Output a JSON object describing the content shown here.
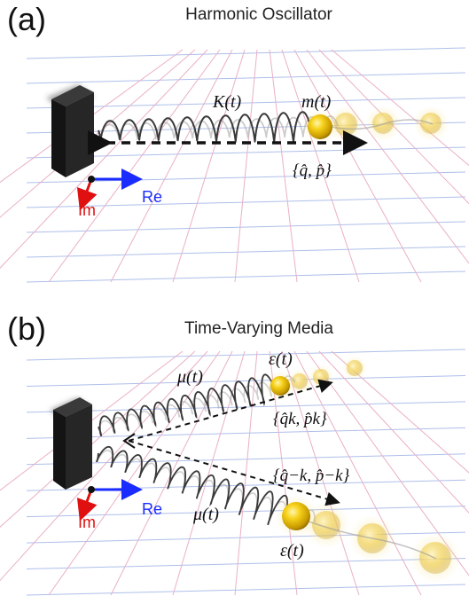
{
  "figure": {
    "panel_a": {
      "letter": "(a)",
      "title": "Harmonic Oscillator",
      "spring_label": "K(t)",
      "mass_label": "m(t)",
      "state_label": "{q̂, p̂}",
      "axis_re": "Re",
      "axis_im": "Im"
    },
    "panel_b": {
      "letter": "(b)",
      "title": "Time-Varying Media",
      "spring_label_upper": "μ(t)",
      "spring_label_lower": "μ(t)",
      "mass_label_upper": "ε(t)",
      "mass_label_lower": "ε(t)",
      "state_label_k": "{q̂k, p̂k}",
      "state_label_minus_k": "{q̂−k, p̂−k}",
      "axis_re": "Re",
      "axis_im": "Im"
    },
    "colors": {
      "grid_blue": "#aebfea",
      "grid_pink": "#e9b0c6",
      "mass_gold": "#f2c200",
      "axis_real": "#1a2cff",
      "axis_imag": "#e01010",
      "wall": "#1d1d1d"
    }
  }
}
